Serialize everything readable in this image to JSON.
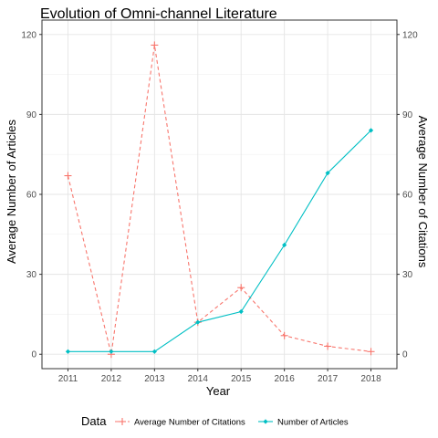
{
  "chart_data": {
    "type": "line",
    "title": "Evolution of Omni-channel Literature",
    "xlabel": "Year",
    "ylabel": "Average Number of Articles",
    "y2label": "Average Number of Citations",
    "x": [
      "2011",
      "2012",
      "2013",
      "2014",
      "2015",
      "2016",
      "2017",
      "2018"
    ],
    "ylim": [
      0,
      120
    ],
    "yticks": [
      0,
      30,
      60,
      90,
      120
    ],
    "y2lim": [
      0,
      120
    ],
    "y2ticks": [
      0,
      30,
      60,
      90,
      120
    ],
    "grid": true,
    "legend": {
      "title": "Data",
      "position": "bottom"
    },
    "series": [
      {
        "name": "Average Number of Citations",
        "values": [
          67,
          0,
          116,
          12,
          25,
          7,
          3,
          1
        ],
        "color": "#F8766D",
        "line_style": "dashed",
        "marker": "plus",
        "axis": "right"
      },
      {
        "name": "Number of Articles",
        "values": [
          1,
          1,
          1,
          12,
          16,
          41,
          68,
          84
        ],
        "color": "#00BFC4",
        "line_style": "solid",
        "marker": "diamond",
        "axis": "left"
      }
    ]
  }
}
